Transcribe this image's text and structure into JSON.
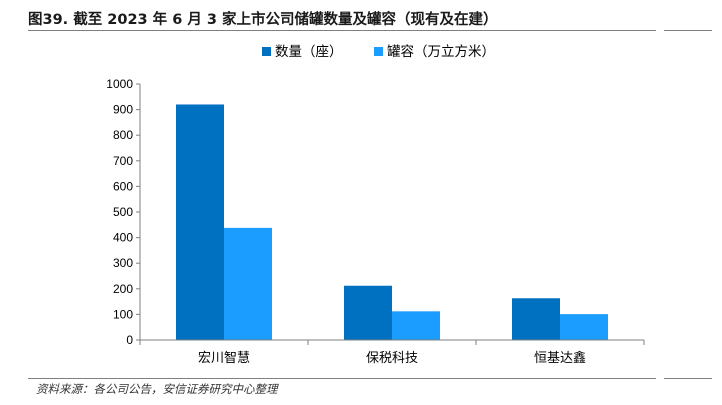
{
  "figure": {
    "caption": "图39. 截至 2023 年 6 月 3 家上市公司储罐数量及罐容（现有及在建）",
    "source": "资料来源：各公司公告，安信证券研究中心整理"
  },
  "chart_data": {
    "type": "bar",
    "title": "",
    "xlabel": "",
    "ylabel": "",
    "categories": [
      "宏川智慧",
      "保税科技",
      "恒基达鑫"
    ],
    "series": [
      {
        "name": "数量（座）",
        "color": "#0070c0",
        "values": [
          920,
          212,
          163
        ]
      },
      {
        "name": "罐容（万立方米）",
        "color": "#1b9cff",
        "values": [
          438,
          112,
          101
        ]
      }
    ],
    "ylim": [
      0,
      1000
    ],
    "yticks": [
      0,
      100,
      200,
      300,
      400,
      500,
      600,
      700,
      800,
      900,
      1000
    ],
    "grid": false,
    "legend": "top-center"
  }
}
